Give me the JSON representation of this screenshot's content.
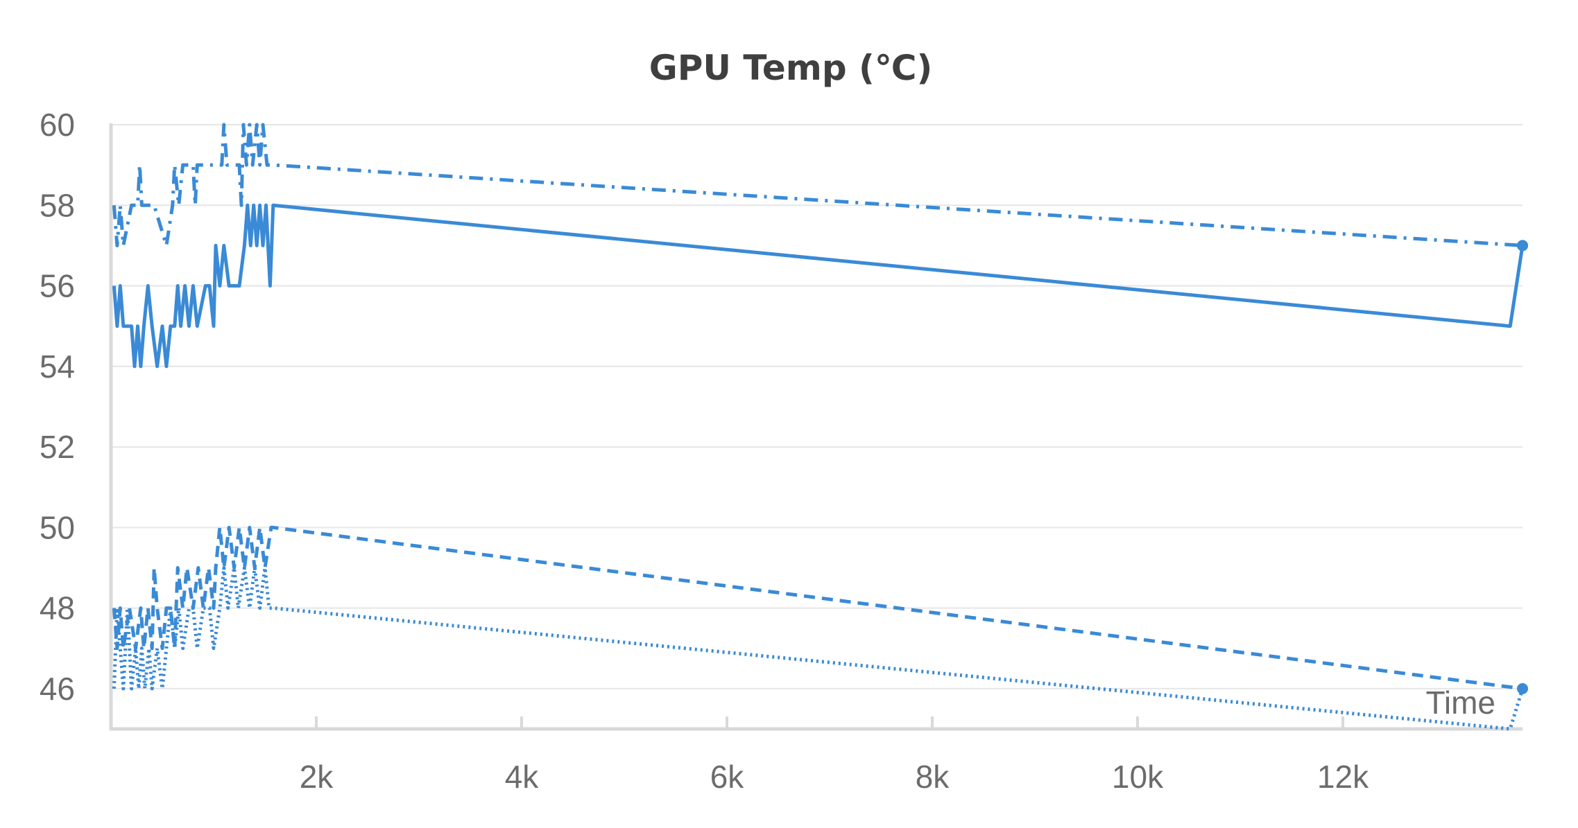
{
  "chart_data": {
    "type": "line",
    "title": "GPU Temp (℃)",
    "xlabel": "Time",
    "ylabel": "",
    "xlim": [
      0,
      13750
    ],
    "ylim": [
      45,
      60
    ],
    "x_ticks": [
      2000,
      4000,
      6000,
      8000,
      10000,
      12000
    ],
    "x_tick_labels": [
      "2k",
      "4k",
      "6k",
      "8k",
      "10k",
      "12k"
    ],
    "y_ticks": [
      46,
      48,
      50,
      52,
      54,
      56,
      58,
      60
    ],
    "y_tick_labels": [
      "46",
      "48",
      "50",
      "52",
      "54",
      "56",
      "58",
      "60"
    ],
    "grid": true,
    "legend": "none",
    "colors": {
      "series": "#3a8ad6",
      "grid": "#e6e6e6",
      "axis": "#d9d9d9",
      "title": "#3f3f3f",
      "tick_text": "#6b6b6b"
    },
    "series": [
      {
        "dash": "solid",
        "points": [
          [
            30,
            56
          ],
          [
            60,
            55
          ],
          [
            90,
            56
          ],
          [
            120,
            55
          ],
          [
            200,
            55
          ],
          [
            230,
            54
          ],
          [
            260,
            55
          ],
          [
            290,
            54
          ],
          [
            320,
            55
          ],
          [
            360,
            56
          ],
          [
            400,
            55
          ],
          [
            450,
            54
          ],
          [
            500,
            55
          ],
          [
            540,
            54
          ],
          [
            580,
            55
          ],
          [
            620,
            55
          ],
          [
            650,
            56
          ],
          [
            680,
            55
          ],
          [
            720,
            56
          ],
          [
            760,
            55
          ],
          [
            800,
            56
          ],
          [
            840,
            55
          ],
          [
            920,
            56
          ],
          [
            960,
            56
          ],
          [
            1000,
            55
          ],
          [
            1020,
            57
          ],
          [
            1060,
            56
          ],
          [
            1100,
            57
          ],
          [
            1150,
            56
          ],
          [
            1250,
            56
          ],
          [
            1300,
            57
          ],
          [
            1330,
            58
          ],
          [
            1360,
            57
          ],
          [
            1390,
            58
          ],
          [
            1420,
            57
          ],
          [
            1450,
            58
          ],
          [
            1480,
            57
          ],
          [
            1510,
            58
          ],
          [
            1550,
            56
          ],
          [
            1580,
            58
          ],
          [
            13630,
            55
          ],
          [
            13750,
            57
          ]
        ],
        "endpoint_marker": true
      },
      {
        "dash": "dash-dot",
        "points": [
          [
            30,
            58
          ],
          [
            60,
            57
          ],
          [
            90,
            58
          ],
          [
            120,
            57
          ],
          [
            200,
            58
          ],
          [
            260,
            58
          ],
          [
            280,
            59
          ],
          [
            300,
            58
          ],
          [
            420,
            58
          ],
          [
            540,
            57
          ],
          [
            600,
            58
          ],
          [
            620,
            59
          ],
          [
            660,
            58
          ],
          [
            700,
            59
          ],
          [
            800,
            59
          ],
          [
            820,
            58
          ],
          [
            840,
            59
          ],
          [
            1000,
            59
          ],
          [
            1080,
            59
          ],
          [
            1100,
            60
          ],
          [
            1130,
            59
          ],
          [
            1250,
            59
          ],
          [
            1270,
            58
          ],
          [
            1290,
            60
          ],
          [
            1320,
            59
          ],
          [
            1350,
            60
          ],
          [
            1380,
            59
          ],
          [
            1420,
            60
          ],
          [
            1450,
            59
          ],
          [
            1480,
            60
          ],
          [
            1520,
            59
          ],
          [
            1580,
            59
          ],
          [
            13750,
            57
          ]
        ],
        "endpoint_marker": true
      },
      {
        "dash": "dashed",
        "points": [
          [
            30,
            48
          ],
          [
            60,
            47
          ],
          [
            90,
            48
          ],
          [
            120,
            47
          ],
          [
            180,
            48
          ],
          [
            240,
            47
          ],
          [
            290,
            48
          ],
          [
            320,
            47
          ],
          [
            360,
            48
          ],
          [
            400,
            47
          ],
          [
            420,
            49
          ],
          [
            450,
            48
          ],
          [
            500,
            47
          ],
          [
            540,
            48
          ],
          [
            580,
            48
          ],
          [
            620,
            47
          ],
          [
            650,
            49
          ],
          [
            700,
            48
          ],
          [
            740,
            49
          ],
          [
            800,
            48
          ],
          [
            850,
            49
          ],
          [
            900,
            48
          ],
          [
            950,
            49
          ],
          [
            1000,
            48
          ],
          [
            1020,
            49
          ],
          [
            1060,
            50
          ],
          [
            1100,
            49
          ],
          [
            1150,
            50
          ],
          [
            1200,
            49
          ],
          [
            1250,
            50
          ],
          [
            1300,
            49
          ],
          [
            1350,
            50
          ],
          [
            1400,
            49
          ],
          [
            1450,
            50
          ],
          [
            1500,
            49
          ],
          [
            1560,
            50
          ],
          [
            1580,
            50
          ],
          [
            13750,
            46
          ]
        ],
        "endpoint_marker": true
      },
      {
        "dash": "dotted",
        "points": [
          [
            30,
            46
          ],
          [
            60,
            48
          ],
          [
            90,
            47
          ],
          [
            120,
            46
          ],
          [
            160,
            48
          ],
          [
            200,
            46
          ],
          [
            240,
            47
          ],
          [
            270,
            46
          ],
          [
            300,
            47
          ],
          [
            330,
            46
          ],
          [
            370,
            47
          ],
          [
            400,
            46
          ],
          [
            450,
            47
          ],
          [
            500,
            46
          ],
          [
            540,
            47
          ],
          [
            580,
            48
          ],
          [
            620,
            47
          ],
          [
            660,
            48
          ],
          [
            700,
            47
          ],
          [
            760,
            48
          ],
          [
            800,
            48
          ],
          [
            840,
            47
          ],
          [
            900,
            48
          ],
          [
            960,
            48
          ],
          [
            1000,
            47
          ],
          [
            1060,
            48
          ],
          [
            1100,
            49
          ],
          [
            1140,
            48
          ],
          [
            1200,
            49
          ],
          [
            1240,
            48
          ],
          [
            1300,
            49
          ],
          [
            1350,
            48
          ],
          [
            1400,
            49
          ],
          [
            1450,
            48
          ],
          [
            1500,
            49
          ],
          [
            1540,
            48
          ],
          [
            1580,
            48
          ],
          [
            13630,
            45
          ],
          [
            13750,
            46
          ]
        ],
        "endpoint_marker": false
      }
    ]
  }
}
